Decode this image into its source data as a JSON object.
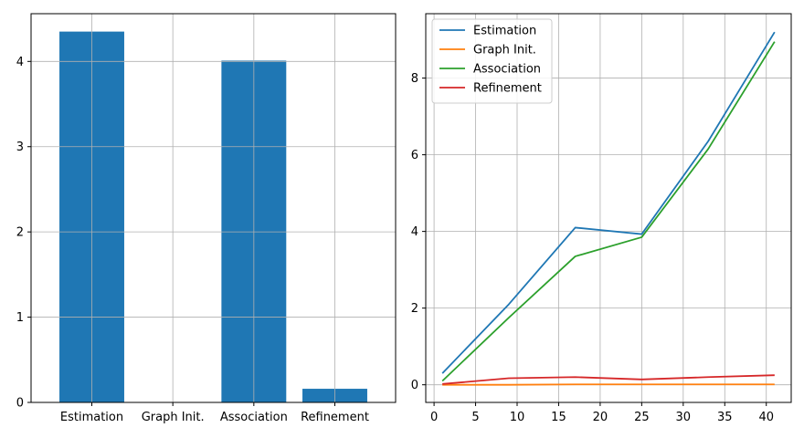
{
  "chart_data": [
    {
      "type": "bar",
      "categories": [
        "Estimation",
        "Graph Init.",
        "Association",
        "Refinement"
      ],
      "values": [
        4.35,
        0.0,
        4.01,
        0.16
      ],
      "ylim": [
        0,
        4.56
      ],
      "yticks": [
        0,
        1,
        2,
        3,
        4
      ],
      "grid": true,
      "colors": {
        "bar": "#1f77b4"
      }
    },
    {
      "type": "line",
      "xlim": [
        -1,
        43
      ],
      "ylim": [
        -0.46,
        9.68
      ],
      "xticks": [
        0,
        5,
        10,
        15,
        20,
        25,
        30,
        35,
        40
      ],
      "yticks": [
        0,
        2,
        4,
        6,
        8
      ],
      "grid": true,
      "legend": "top-left",
      "series": [
        {
          "name": "Estimation",
          "color": "#1f77b4",
          "x": [
            1,
            9,
            17,
            25,
            33,
            41
          ],
          "y": [
            0.3,
            2.1,
            4.1,
            3.93,
            6.35,
            9.2
          ]
        },
        {
          "name": "Graph Init.",
          "color": "#ff7f0e",
          "x": [
            1,
            9,
            17,
            25,
            33,
            41
          ],
          "y": [
            0.0,
            0.0,
            0.01,
            0.01,
            0.01,
            0.01
          ]
        },
        {
          "name": "Association",
          "color": "#2ca02c",
          "x": [
            1,
            9,
            17,
            25,
            33,
            41
          ],
          "y": [
            0.1,
            1.75,
            3.35,
            3.85,
            6.15,
            8.95
          ]
        },
        {
          "name": "Refinement",
          "color": "#d62728",
          "x": [
            1,
            9,
            17,
            25,
            33,
            41
          ],
          "y": [
            0.02,
            0.17,
            0.2,
            0.14,
            0.2,
            0.25
          ]
        }
      ]
    }
  ]
}
